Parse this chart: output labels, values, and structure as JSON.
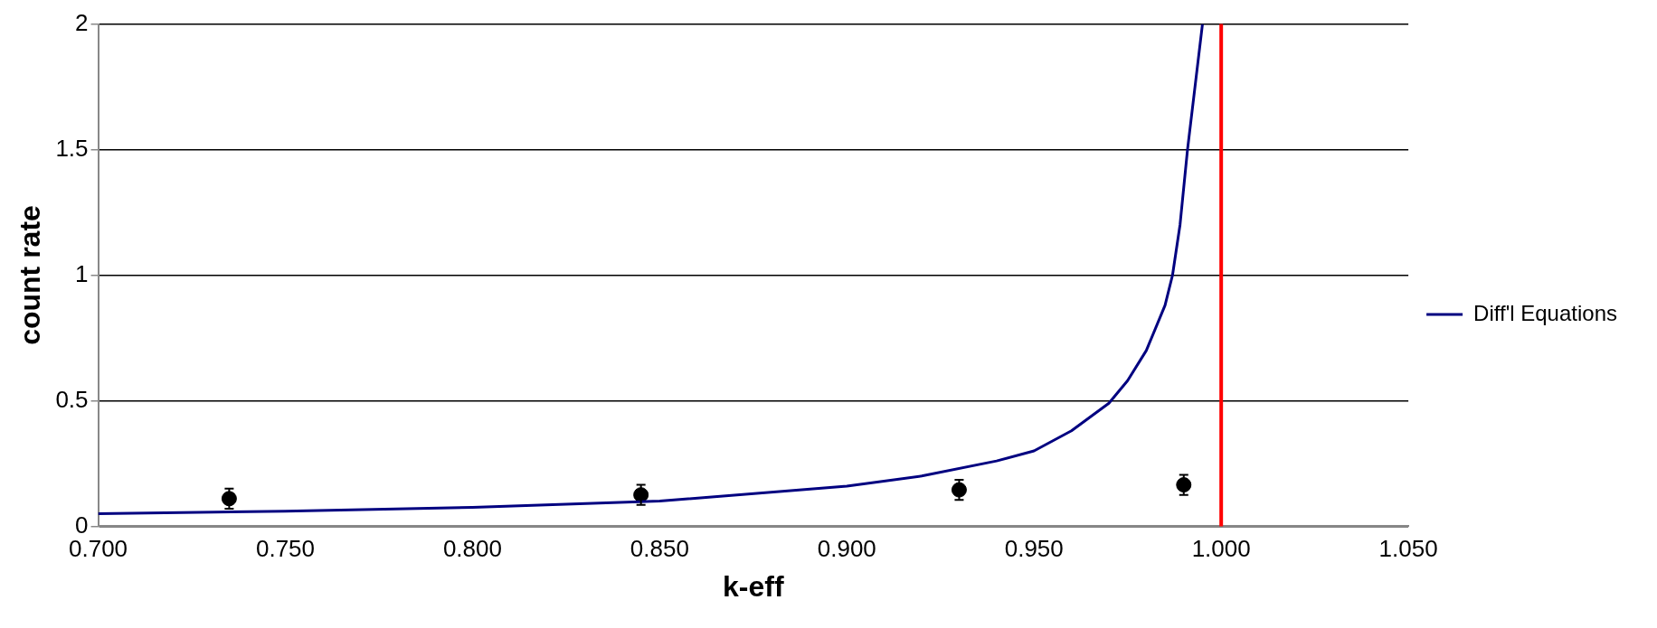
{
  "chart_data": {
    "type": "line",
    "xlabel": "k-eff",
    "ylabel": "count rate",
    "xlim": [
      0.7,
      1.05
    ],
    "xticks": [
      {
        "value": 0.7,
        "label": "0.700"
      },
      {
        "value": 0.75,
        "label": "0.750"
      },
      {
        "value": 0.8,
        "label": "0.800"
      },
      {
        "value": 0.85,
        "label": "0.850"
      },
      {
        "value": 0.9,
        "label": "0.900"
      },
      {
        "value": 0.95,
        "label": "0.950"
      },
      {
        "value": 1.0,
        "label": "1.000"
      },
      {
        "value": 1.05,
        "label": "1.050"
      }
    ],
    "ylim": [
      0,
      2
    ],
    "yticks": [
      0,
      0.5,
      1,
      1.5,
      2
    ],
    "grid": "y",
    "legend": "right",
    "series": [
      {
        "name": "Diff'l Equations",
        "color": "#000080",
        "marker": "none",
        "x": [
          0.7,
          0.75,
          0.8,
          0.85,
          0.9,
          0.92,
          0.94,
          0.95,
          0.96,
          0.97,
          0.975,
          0.98,
          0.985,
          0.987,
          0.989,
          0.991,
          0.993,
          0.995
        ],
        "values": [
          0.05,
          0.06,
          0.075,
          0.1,
          0.16,
          0.2,
          0.26,
          0.3,
          0.38,
          0.49,
          0.58,
          0.7,
          0.88,
          1.0,
          1.2,
          1.5,
          1.75,
          2.0
        ]
      },
      {
        "type": "scatter",
        "color": "#000000",
        "marker": "circle",
        "x": [
          0.735,
          0.845,
          0.93,
          0.99
        ],
        "values": [
          0.11,
          0.125,
          0.145,
          0.165
        ],
        "errors": [
          0.04,
          0.04,
          0.04,
          0.04
        ]
      }
    ],
    "ref_lines": [
      {
        "axis": "x",
        "value": 1.0,
        "color": "#ff0000"
      }
    ]
  }
}
